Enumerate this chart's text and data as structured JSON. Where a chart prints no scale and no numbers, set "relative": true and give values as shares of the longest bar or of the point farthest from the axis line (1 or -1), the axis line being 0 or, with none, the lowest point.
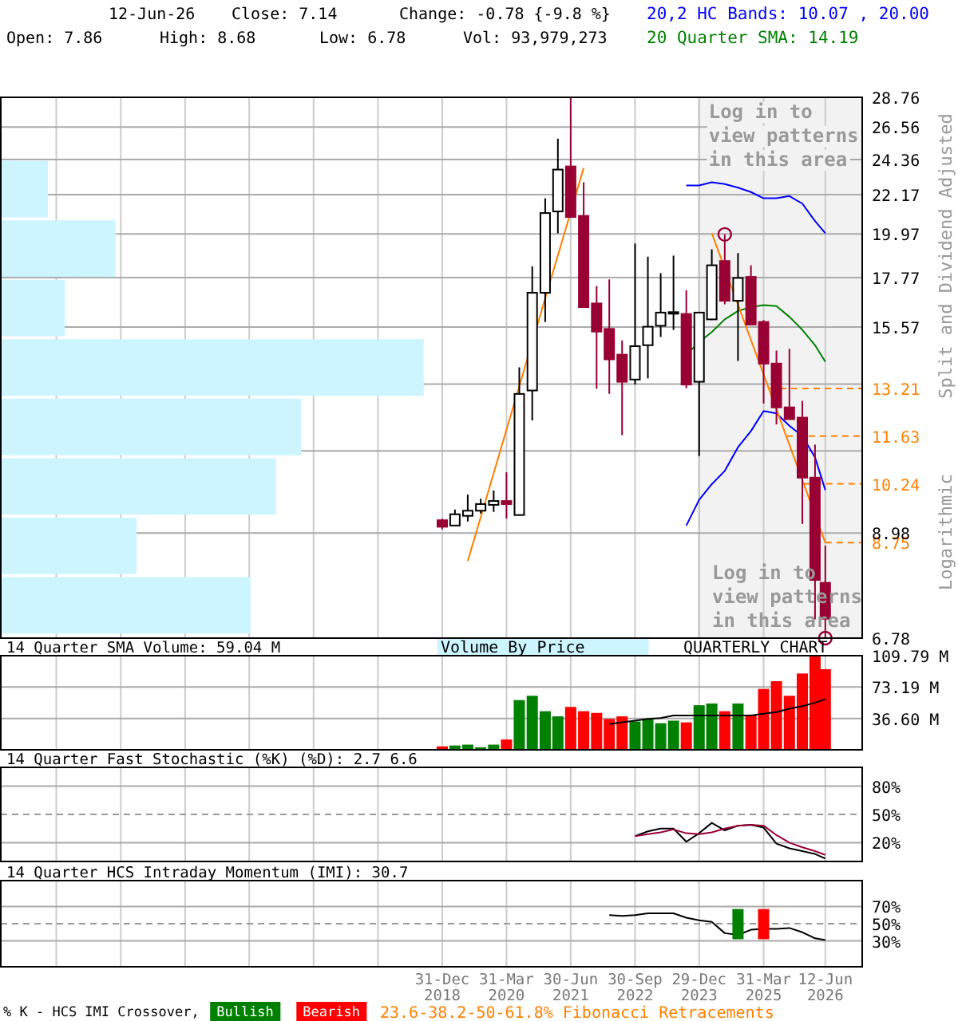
{
  "chart_data": [
    {
      "type": "candlestick",
      "ylabel": "Split and Dividend Adjusted",
      "log": "y",
      "grid": true,
      "legend": "top right",
      "tick_labels": "y",
      "x": [
        "2018-12-31",
        "2019-03-31",
        "2019-06-30",
        "2019-09-30",
        "2019-12-31",
        "2020-03-31",
        "2020-06-30",
        "2020-09-30",
        "2020-12-31",
        "2021-03-31",
        "2021-06-30",
        "2021-09-30",
        "2021-12-31",
        "2022-03-31",
        "2022-06-30",
        "2022-09-30",
        "2022-12-30",
        "2023-03-31",
        "2023-06-30",
        "2023-09-29",
        "2023-12-29",
        "2024-03-28",
        "2024-06-28",
        "2024-09-30",
        "2024-12-31",
        "2025-03-31",
        "2025-06-30",
        "2025-09-30",
        "2025-12-31",
        "2026-03-31",
        "2026-06-12"
      ],
      "ohlc": [
        [
          9.29,
          9.33,
          9.07,
          9.13
        ],
        [
          9.16,
          9.56,
          9.16,
          9.44
        ],
        [
          9.4,
          9.95,
          9.26,
          9.53
        ],
        [
          9.53,
          9.84,
          9.46,
          9.7
        ],
        [
          9.68,
          10.06,
          9.5,
          9.78
        ],
        [
          9.78,
          10.56,
          9.33,
          9.7
        ],
        [
          9.42,
          13.98,
          9.42,
          13.02
        ],
        [
          13.14,
          18.31,
          12.13,
          17.06
        ],
        [
          17.06,
          21.96,
          15.78,
          21.11
        ],
        [
          21.2,
          25.75,
          20.0,
          23.71
        ],
        [
          23.91,
          28.76,
          20.89,
          20.89
        ],
        [
          20.95,
          22.92,
          16.42,
          16.42
        ],
        [
          16.58,
          17.37,
          13.2,
          15.38
        ],
        [
          15.49,
          17.68,
          13.02,
          14.28
        ],
        [
          14.46,
          15.02,
          11.66,
          13.45
        ],
        [
          13.53,
          19.46,
          13.35,
          14.79
        ],
        [
          14.83,
          18.79,
          13.57,
          15.58
        ],
        [
          15.62,
          17.98,
          15.16,
          16.18
        ],
        [
          16.15,
          18.84,
          15.45,
          16.2
        ],
        [
          16.12,
          17.18,
          13.22,
          13.35
        ],
        [
          13.45,
          16.18,
          11.03,
          16.18
        ],
        [
          15.89,
          19.16,
          15.86,
          18.36
        ],
        [
          18.57,
          19.94,
          16.54,
          16.7
        ],
        [
          16.7,
          18.97,
          14.22,
          17.75
        ],
        [
          17.8,
          18.36,
          15.67,
          15.67
        ],
        [
          15.78,
          15.86,
          12.69,
          14.12
        ],
        [
          14.12,
          14.62,
          12.0,
          12.56
        ],
        [
          12.56,
          14.69,
          12.17,
          12.17
        ],
        [
          12.22,
          12.78,
          9.2,
          10.41
        ],
        [
          10.41,
          11.37,
          7.13,
          7.92
        ],
        [
          7.86,
          8.68,
          6.78,
          7.14
        ]
      ],
      "series": [
        {
          "name": "20,2 HC Bands: 10.07 , 20.00",
          "type": "line",
          "color": "#0000ff",
          "x": [
            "2023-09-29",
            "2023-12-29",
            "2024-03-28",
            "2024-06-28",
            "2024-09-30",
            "2024-12-31",
            "2025-03-31",
            "2025-06-30",
            "2025-09-30",
            "2025-12-31",
            "2026-03-31",
            "2026-06-12"
          ],
          "values": [
            22.73,
            22.73,
            22.92,
            22.81,
            22.59,
            22.33,
            21.96,
            21.96,
            22.09,
            21.65,
            20.66,
            20.0
          ]
        },
        {
          "type": "line",
          "color": "#0000ff",
          "x": [
            "2023-09-29",
            "2023-12-29",
            "2024-03-28",
            "2024-06-28",
            "2024-09-30",
            "2024-12-31",
            "2025-03-31",
            "2025-06-30",
            "2025-09-30",
            "2025-12-31",
            "2026-03-31",
            "2026-06-12"
          ],
          "values": [
            9.16,
            9.81,
            10.23,
            10.6,
            11.29,
            11.79,
            12.44,
            12.36,
            11.96,
            11.63,
            10.99,
            10.07
          ]
        },
        {
          "name": "20 Quarter SMA: 14.19",
          "type": "line",
          "color": "#008000",
          "x": [
            "2023-09-29",
            "2023-12-29",
            "2024-03-28",
            "2024-06-28",
            "2024-09-30",
            "2024-12-31",
            "2025-03-31",
            "2025-06-30",
            "2025-09-30",
            "2025-12-31",
            "2026-03-31",
            "2026-06-12"
          ],
          "values": [
            14.46,
            14.95,
            15.36,
            15.89,
            16.25,
            16.42,
            16.51,
            16.46,
            16.0,
            15.45,
            14.83,
            14.19
          ]
        },
        {
          "type": "line",
          "color": "#ff8000",
          "x": [
            "2019-06-30",
            "2021-09-30"
          ],
          "values": [
            8.33,
            23.81
          ]
        },
        {
          "type": "line",
          "color": "#ff8000",
          "x": [
            "2024-03-28",
            "2026-06-12"
          ],
          "values": [
            20.0,
            8.75
          ]
        },
        {
          "type": "scatter",
          "marker": "circle",
          "color": "#990033",
          "x": [
            "2024-06-28",
            "2026-06-12"
          ],
          "values": [
            19.94,
            6.78
          ]
        }
      ],
      "xlim": [
        "2010-06-01",
        "2027-03-01"
      ],
      "xticks": [
        {
          "value": "2011-06-30",
          "label": null
        },
        {
          "value": "2012-09-30",
          "label": null
        },
        {
          "value": "2013-12-31",
          "label": null
        },
        {
          "value": "2015-03-31",
          "label": null
        },
        {
          "value": "2016-06-30",
          "label": null
        },
        {
          "value": "2017-09-30",
          "label": null
        },
        {
          "value": "2018-12-31",
          "label": null
        },
        {
          "value": "2020-03-31",
          "label": null
        },
        {
          "value": "2021-06-30",
          "label": null
        },
        {
          "value": "2022-09-30",
          "label": null
        },
        {
          "value": "2023-12-29",
          "label": null
        },
        {
          "value": "2025-03-31",
          "label": null
        },
        {
          "value": "2026-06-12",
          "label": null
        }
      ],
      "ylim": [
        6.78,
        28.76
      ],
      "yticks": [
        6.78,
        8.98,
        {
          "value": 11.18,
          "label": null
        },
        {
          "value": 13.37,
          "label": null
        },
        15.57,
        17.77,
        19.97,
        22.17,
        24.36,
        26.56,
        28.76
      ],
      "ref_lines": [
        {
          "axis": "y",
          "value": 13.21,
          "label": "13.21",
          "color": "#ff8000",
          "line_style": "dashed"
        },
        {
          "axis": "y",
          "value": 11.63,
          "label": "11.63",
          "color": "#ff8000",
          "line_style": "dashed"
        },
        {
          "axis": "y",
          "value": 10.24,
          "label": "10.24",
          "color": "#ff8000",
          "line_style": "dashed"
        },
        {
          "axis": "y",
          "value": 8.75,
          "label": "8.75",
          "color": "#ff8000",
          "line_style": "dashed"
        }
      ],
      "bands": [
        {
          "axis": "x",
          "from": "2023-12-29",
          "to": "2027-03-01",
          "label": "Log in to view patterns in this area",
          "color": "#f2f2f2"
        }
      ],
      "annotations": [
        "12-Jun-26",
        "Close: 7.14",
        "Change: -0.78 {-9.8 %}",
        "Open: 7.86",
        "High: 8.68",
        "Low: 6.78",
        "Vol: 93,979,273",
        "Log in to view patterns in this area",
        "Volume By Price",
        "QUARTERLY CHART",
        "Logarithmic",
        "23.6-38.2-50-61.8% Fibonacci Retracements"
      ]
    },
    {
      "type": "bar",
      "title": "14 Quarter SMA Volume: 59.04 M",
      "grid": true,
      "tick_labels": "y",
      "x": [
        "2018-12-31",
        "2019-03-31",
        "2019-06-30",
        "2019-09-30",
        "2019-12-31",
        "2020-03-31",
        "2020-06-30",
        "2020-09-30",
        "2020-12-31",
        "2021-03-31",
        "2021-06-30",
        "2021-09-30",
        "2021-12-31",
        "2022-03-31",
        "2022-06-30",
        "2022-09-30",
        "2022-12-30",
        "2023-03-31",
        "2023-06-30",
        "2023-09-29",
        "2023-12-29",
        "2024-03-28",
        "2024-06-28",
        "2024-09-30",
        "2024-12-31",
        "2025-03-31",
        "2025-06-30",
        "2025-09-30",
        "2025-12-31",
        "2026-03-31",
        "2026-06-12"
      ],
      "series": [
        {
          "type": "bar",
          "values": [
            4,
            5,
            6,
            3,
            6,
            12,
            58,
            63,
            45,
            39,
            50,
            45,
            43,
            36,
            39,
            33,
            36,
            31,
            34,
            32,
            52,
            54,
            45,
            54,
            41,
            71,
            80,
            63,
            89,
            109,
            94
          ],
          "colors": [
            "#ff0000",
            "#008000",
            "#008000",
            "#008000",
            "#008000",
            "#ff0000",
            "#008000",
            "#008000",
            "#008000",
            "#008000",
            "#ff0000",
            "#ff0000",
            "#ff0000",
            "#ff0000",
            "#ff0000",
            "#008000",
            "#008000",
            "#008000",
            "#008000",
            "#ff0000",
            "#008000",
            "#008000",
            "#ff0000",
            "#008000",
            "#ff0000",
            "#ff0000",
            "#ff0000",
            "#ff0000",
            "#ff0000",
            "#ff0000",
            "#ff0000"
          ]
        },
        {
          "type": "line",
          "color": "#000000",
          "x": [
            "2022-03-31",
            "2022-06-30",
            "2022-09-30",
            "2022-12-30",
            "2023-03-31",
            "2023-06-30",
            "2023-09-29",
            "2023-12-29",
            "2024-03-28",
            "2024-06-28",
            "2024-09-30",
            "2024-12-31",
            "2025-03-31",
            "2025-06-30",
            "2025-09-30",
            "2025-12-31",
            "2026-03-31",
            "2026-06-12"
          ],
          "values": [
            30,
            32,
            34,
            36,
            37,
            40,
            40,
            40,
            40,
            40,
            40,
            40,
            42,
            44,
            48,
            51,
            55,
            59
          ]
        }
      ],
      "xlim": [
        "2010-06-01",
        "2027-03-01"
      ],
      "xticks": [
        {
          "value": "2011-06-30",
          "label": null
        },
        {
          "value": "2012-09-30",
          "label": null
        },
        {
          "value": "2013-12-31",
          "label": null
        },
        {
          "value": "2015-03-31",
          "label": null
        },
        {
          "value": "2016-06-30",
          "label": null
        },
        {
          "value": "2017-09-30",
          "label": null
        },
        {
          "value": "2018-12-31",
          "label": null
        },
        {
          "value": "2020-03-31",
          "label": null
        },
        {
          "value": "2021-06-30",
          "label": null
        },
        {
          "value": "2022-09-30",
          "label": null
        },
        {
          "value": "2023-12-29",
          "label": null
        },
        {
          "value": "2025-03-31",
          "label": null
        },
        {
          "value": "2026-06-12",
          "label": null
        }
      ],
      "ylim": [
        0,
        109.79
      ],
      "yticks": [
        {
          "value": 36.6,
          "label": "36.60 M"
        },
        {
          "value": 73.19,
          "label": "73.19 M"
        },
        {
          "value": 109.79,
          "label": "109.79 M"
        }
      ]
    },
    {
      "type": "line",
      "title": "14 Quarter Fast Stochastic (%K) (%D): 2.7   6.6",
      "grid": true,
      "tick_labels": "y",
      "series": [
        {
          "color": "#000000",
          "x": [
            "2022-09-30",
            "2022-12-30",
            "2023-03-31",
            "2023-06-30",
            "2023-09-29",
            "2023-12-29",
            "2024-03-28",
            "2024-06-28",
            "2024-09-30",
            "2024-12-31",
            "2025-03-31",
            "2025-06-30",
            "2025-09-30",
            "2025-12-31",
            "2026-03-31",
            "2026-06-12"
          ],
          "values": [
            27,
            32,
            35,
            35,
            21,
            30,
            41,
            33,
            38,
            39,
            36,
            19,
            14,
            11,
            8,
            3
          ]
        },
        {
          "color": "#990033",
          "x": [
            "2022-09-30",
            "2022-12-30",
            "2023-03-31",
            "2023-06-30",
            "2023-09-29",
            "2023-12-29",
            "2024-03-28",
            "2024-06-28",
            "2024-09-30",
            "2024-12-31",
            "2025-03-31",
            "2025-06-30",
            "2025-09-30",
            "2025-12-31",
            "2026-03-31",
            "2026-06-12"
          ],
          "values": [
            27,
            29,
            31,
            34,
            30,
            29,
            31,
            35,
            38,
            39,
            38,
            28,
            20,
            15,
            11,
            7
          ]
        }
      ],
      "xlim": [
        "2010-06-01",
        "2027-03-01"
      ],
      "xticks": [
        {
          "value": "2011-06-30",
          "label": null
        },
        {
          "value": "2012-09-30",
          "label": null
        },
        {
          "value": "2013-12-31",
          "label": null
        },
        {
          "value": "2015-03-31",
          "label": null
        },
        {
          "value": "2016-06-30",
          "label": null
        },
        {
          "value": "2017-09-30",
          "label": null
        },
        {
          "value": "2018-12-31",
          "label": null
        },
        {
          "value": "2020-03-31",
          "label": null
        },
        {
          "value": "2021-06-30",
          "label": null
        },
        {
          "value": "2022-09-30",
          "label": null
        },
        {
          "value": "2023-12-29",
          "label": null
        },
        {
          "value": "2025-03-31",
          "label": null
        },
        {
          "value": "2026-06-12",
          "label": null
        }
      ],
      "ylim": [
        0,
        100
      ],
      "yticks": [
        {
          "value": 20,
          "label": "20%"
        },
        {
          "value": 50,
          "label": "50%"
        },
        {
          "value": 80,
          "label": "80%"
        }
      ],
      "ref_lines": [
        {
          "axis": "y",
          "value": 50,
          "color": "#999999",
          "line_style": "dashed"
        }
      ]
    },
    {
      "type": "line",
      "title": "14 Quarter HCS Intraday Momentum (IMI): 30.7",
      "grid": true,
      "legend": "bottom",
      "legend_title": "% K - HCS IMI Crossover,",
      "series": [
        {
          "color": "#000000",
          "x": [
            "2022-03-31",
            "2022-06-30",
            "2022-09-30",
            "2022-12-30",
            "2023-03-31",
            "2023-06-30",
            "2023-09-29",
            "2023-12-29",
            "2024-03-28",
            "2024-06-28",
            "2024-09-30",
            "2024-12-31",
            "2025-03-31",
            "2025-06-30",
            "2025-09-30",
            "2025-12-31",
            "2026-03-31",
            "2026-06-12"
          ],
          "values": [
            60,
            59,
            60,
            62,
            62,
            62,
            57,
            54,
            52,
            39,
            37,
            43,
            44,
            44,
            45,
            40,
            33,
            31
          ]
        },
        {
          "name": "Bullish",
          "type": "bar",
          "color": "#008000",
          "x": [
            "2024-09-30"
          ],
          "base": [
            32
          ],
          "values": [
            35
          ]
        },
        {
          "name": "Bearish",
          "type": "bar",
          "color": "#ff0000",
          "x": [
            "2025-03-31"
          ],
          "base": [
            32
          ],
          "values": [
            35
          ]
        }
      ],
      "xlim": [
        "2010-06-01",
        "2027-03-01"
      ],
      "xticks": [
        {
          "value": "2011-06-30",
          "label": null
        },
        {
          "value": "2012-09-30",
          "label": null
        },
        {
          "value": "2013-12-31",
          "label": null
        },
        {
          "value": "2015-03-31",
          "label": null
        },
        {
          "value": "2016-06-30",
          "label": null
        },
        {
          "value": "2017-09-30",
          "label": null
        },
        {
          "value": "2018-12-31",
          "label": "31-Dec 2018"
        },
        {
          "value": "2020-03-31",
          "label": "31-Mar 2020"
        },
        {
          "value": "2021-06-30",
          "label": "30-Jun 2021"
        },
        {
          "value": "2022-09-30",
          "label": "30-Sep 2022"
        },
        {
          "value": "2023-12-29",
          "label": "29-Dec 2023"
        },
        {
          "value": "2025-03-31",
          "label": "31-Mar 2025"
        },
        {
          "value": "2026-06-12",
          "label": "12-Jun 2026"
        }
      ],
      "ylim": [
        0,
        100
      ],
      "yticks": [
        {
          "value": 30,
          "label": "30%"
        },
        {
          "value": 50,
          "label": "50%"
        },
        {
          "value": 70,
          "label": "70%"
        }
      ],
      "ref_lines": [
        {
          "axis": "y",
          "value": 50,
          "color": "#999999",
          "line_style": "dashed"
        }
      ]
    },
    {
      "type": "bar",
      "orientation": "horizontal",
      "relative": true,
      "tick_labels": false,
      "color": "#ccf5ff",
      "categories": [
        null,
        null,
        null,
        null,
        null,
        null,
        null,
        null
      ],
      "values": [
        0.11,
        0.27,
        0.15,
        1,
        0.71,
        0.65,
        0.32,
        0.59
      ]
    }
  ]
}
